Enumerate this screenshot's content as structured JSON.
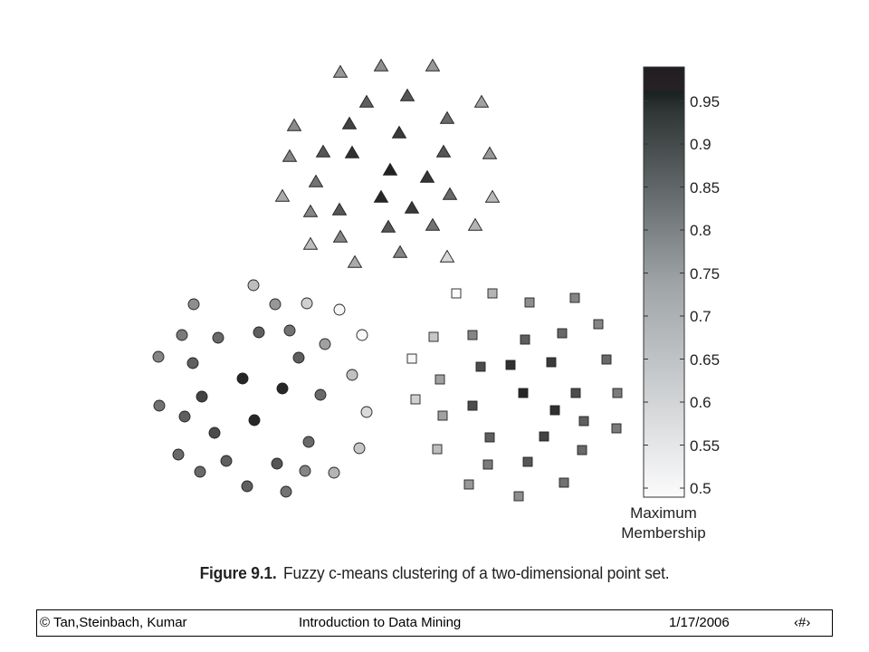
{
  "chart_data": {
    "type": "scatter",
    "title": "",
    "marker_series": [
      {
        "marker": "circle",
        "label": ""
      },
      {
        "marker": "triangle",
        "label": ""
      },
      {
        "marker": "square",
        "label": ""
      }
    ],
    "triangles": [
      [
        376,
        80,
        0.72
      ],
      [
        421,
        73,
        0.74
      ],
      [
        478,
        73,
        0.72
      ],
      [
        405,
        113,
        0.84
      ],
      [
        450,
        106,
        0.86
      ],
      [
        532,
        113,
        0.7
      ],
      [
        325,
        139,
        0.75
      ],
      [
        386,
        137,
        0.9
      ],
      [
        494,
        131,
        0.82
      ],
      [
        441,
        147,
        0.92
      ],
      [
        320,
        173,
        0.76
      ],
      [
        357,
        168,
        0.86
      ],
      [
        389,
        169,
        0.94
      ],
      [
        490,
        168,
        0.86
      ],
      [
        541,
        170,
        0.72
      ],
      [
        431,
        188,
        0.97
      ],
      [
        472,
        196,
        0.93
      ],
      [
        349,
        201,
        0.8
      ],
      [
        312,
        217,
        0.68
      ],
      [
        421,
        218,
        0.96
      ],
      [
        497,
        215,
        0.82
      ],
      [
        544,
        218,
        0.65
      ],
      [
        343,
        234,
        0.76
      ],
      [
        375,
        232,
        0.86
      ],
      [
        455,
        230,
        0.92
      ],
      [
        429,
        251,
        0.86
      ],
      [
        478,
        249,
        0.8
      ],
      [
        525,
        249,
        0.66
      ],
      [
        376,
        262,
        0.76
      ],
      [
        343,
        270,
        0.64
      ],
      [
        442,
        279,
        0.76
      ],
      [
        494,
        284,
        0.58
      ],
      [
        392,
        290,
        0.68
      ]
    ],
    "circles": [
      [
        280,
        315,
        0.64
      ],
      [
        214,
        336,
        0.74
      ],
      [
        304,
        336,
        0.72
      ],
      [
        339,
        335,
        0.6
      ],
      [
        375,
        342,
        0.52
      ],
      [
        201,
        370,
        0.78
      ],
      [
        241,
        373,
        0.82
      ],
      [
        286,
        367,
        0.84
      ],
      [
        320,
        365,
        0.8
      ],
      [
        359,
        380,
        0.7
      ],
      [
        400,
        370,
        0.51
      ],
      [
        175,
        394,
        0.76
      ],
      [
        213,
        401,
        0.84
      ],
      [
        330,
        395,
        0.84
      ],
      [
        389,
        414,
        0.63
      ],
      [
        268,
        418,
        0.96
      ],
      [
        312,
        429,
        0.96
      ],
      [
        223,
        438,
        0.9
      ],
      [
        354,
        436,
        0.82
      ],
      [
        176,
        448,
        0.8
      ],
      [
        204,
        460,
        0.84
      ],
      [
        281,
        464,
        0.96
      ],
      [
        405,
        455,
        0.58
      ],
      [
        237,
        478,
        0.88
      ],
      [
        341,
        488,
        0.82
      ],
      [
        397,
        495,
        0.62
      ],
      [
        197,
        502,
        0.82
      ],
      [
        250,
        509,
        0.84
      ],
      [
        306,
        512,
        0.86
      ],
      [
        337,
        520,
        0.76
      ],
      [
        369,
        522,
        0.66
      ],
      [
        221,
        521,
        0.82
      ],
      [
        273,
        537,
        0.84
      ],
      [
        316,
        543,
        0.8
      ]
    ],
    "squares": [
      [
        504,
        324,
        0.51
      ],
      [
        544,
        324,
        0.66
      ],
      [
        585,
        334,
        0.74
      ],
      [
        635,
        329,
        0.76
      ],
      [
        479,
        372,
        0.62
      ],
      [
        522,
        370,
        0.76
      ],
      [
        580,
        375,
        0.84
      ],
      [
        621,
        368,
        0.82
      ],
      [
        661,
        358,
        0.76
      ],
      [
        455,
        396,
        0.52
      ],
      [
        531,
        405,
        0.88
      ],
      [
        564,
        403,
        0.94
      ],
      [
        609,
        400,
        0.92
      ],
      [
        670,
        397,
        0.82
      ],
      [
        486,
        419,
        0.7
      ],
      [
        578,
        434,
        0.96
      ],
      [
        636,
        434,
        0.88
      ],
      [
        682,
        434,
        0.78
      ],
      [
        459,
        441,
        0.6
      ],
      [
        522,
        448,
        0.88
      ],
      [
        613,
        453,
        0.94
      ],
      [
        489,
        459,
        0.7
      ],
      [
        645,
        465,
        0.84
      ],
      [
        541,
        483,
        0.84
      ],
      [
        601,
        482,
        0.9
      ],
      [
        681,
        473,
        0.78
      ],
      [
        483,
        496,
        0.64
      ],
      [
        643,
        497,
        0.82
      ],
      [
        539,
        513,
        0.78
      ],
      [
        583,
        510,
        0.86
      ],
      [
        518,
        535,
        0.72
      ],
      [
        623,
        533,
        0.8
      ],
      [
        573,
        548,
        0.74
      ]
    ],
    "colorbar": {
      "label_line1": "Maximum",
      "label_line2": "Membership",
      "range": [
        0.5,
        1.0
      ],
      "ticks": [
        "0.95",
        "0.9",
        "0.85",
        "0.8",
        "0.75",
        "0.7",
        "0.65",
        "0.6",
        "0.55",
        "0.5"
      ],
      "tick_values": [
        0.95,
        0.9,
        0.85,
        0.8,
        0.75,
        0.7,
        0.65,
        0.6,
        0.55,
        0.5
      ],
      "colormap": "white-to-black grayscale"
    },
    "caption_prefix": "Figure 9.1.",
    "caption_text": "Fuzzy c-means clustering of a two-dimensional point set."
  },
  "footer": {
    "left": "© Tan,Steinbach, Kumar",
    "center": "Introduction to Data Mining",
    "date": "1/17/2006",
    "page_symbol": "‹#›"
  }
}
